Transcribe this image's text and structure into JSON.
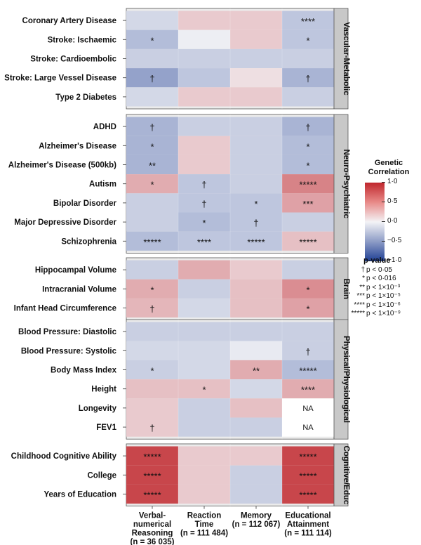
{
  "chart_data": {
    "type": "heatmap",
    "columns": [
      {
        "name": "Verbal-numerical Reasoning",
        "lines": [
          "Verbal-",
          "numerical",
          "Reasoning"
        ],
        "n": "(n = 36 035)"
      },
      {
        "name": "Reaction Time",
        "lines": [
          "Reaction",
          "Time"
        ],
        "n": "(n = 111 484)"
      },
      {
        "name": "Memory",
        "lines": [
          "Memory"
        ],
        "n": "(n = 112 067)"
      },
      {
        "name": "Educational Attainment",
        "lines": [
          "Educational",
          "Attainment"
        ],
        "n": "(n = 111 114)"
      }
    ],
    "panels": [
      {
        "label": "Vascular-Metabolic",
        "rows": [
          {
            "trait": "Coronary Artery Disease",
            "values": [
              -0.15,
              0.2,
              0.2,
              -0.25
            ],
            "marks": [
              "",
              "",
              "",
              "****"
            ]
          },
          {
            "trait": "Stroke: Ischaemic",
            "values": [
              -0.3,
              -0.03,
              0.2,
              -0.25
            ],
            "marks": [
              "*",
              "",
              "",
              "*"
            ]
          },
          {
            "trait": "Stroke: Cardioembolic",
            "values": [
              -0.2,
              -0.2,
              -0.2,
              -0.2
            ],
            "marks": [
              "",
              "",
              "",
              ""
            ]
          },
          {
            "trait": "Stroke: Large Vessel Disease",
            "values": [
              -0.45,
              -0.25,
              0.1,
              -0.35
            ],
            "marks": [
              "†",
              "",
              "",
              "†"
            ]
          },
          {
            "trait": "Type 2 Diabetes",
            "values": [
              -0.15,
              0.2,
              0.2,
              -0.2
            ],
            "marks": [
              "",
              "",
              "",
              ""
            ]
          }
        ]
      },
      {
        "label": "Neuro-Psychiatric",
        "rows": [
          {
            "trait": "ADHD",
            "values": [
              -0.35,
              -0.2,
              -0.2,
              -0.35
            ],
            "marks": [
              "†",
              "",
              "",
              "†"
            ]
          },
          {
            "trait": "Alzheimer's Disease",
            "values": [
              -0.35,
              0.2,
              -0.2,
              -0.3
            ],
            "marks": [
              "*",
              "",
              "",
              "*"
            ]
          },
          {
            "trait": "Alzheimer's Disease (500kb)",
            "values": [
              -0.35,
              0.2,
              -0.2,
              -0.3
            ],
            "marks": [
              "**",
              "",
              "",
              "*"
            ]
          },
          {
            "trait": "Autism",
            "values": [
              0.35,
              -0.25,
              -0.2,
              0.55
            ],
            "marks": [
              "*",
              "†",
              "",
              "*****"
            ]
          },
          {
            "trait": "Bipolar Disorder",
            "values": [
              -0.2,
              -0.25,
              -0.25,
              0.4
            ],
            "marks": [
              "",
              "†",
              "*",
              "***"
            ]
          },
          {
            "trait": "Major Depressive Disorder",
            "values": [
              -0.2,
              -0.3,
              -0.25,
              -0.2
            ],
            "marks": [
              "",
              "*",
              "†",
              ""
            ]
          },
          {
            "trait": "Schizophrenia",
            "values": [
              -0.3,
              -0.25,
              -0.25,
              0.25
            ],
            "marks": [
              "*****",
              "****",
              "*****",
              "*****"
            ]
          }
        ]
      },
      {
        "label": "Brain",
        "rows": [
          {
            "trait": "Hippocampal Volume",
            "values": [
              -0.2,
              0.35,
              0.2,
              -0.2
            ],
            "marks": [
              "",
              "",
              "",
              ""
            ]
          },
          {
            "trait": "Intracranial Volume",
            "values": [
              0.35,
              -0.2,
              0.25,
              0.5
            ],
            "marks": [
              "*",
              "",
              "",
              "*"
            ]
          },
          {
            "trait": "Infant Head Circumference",
            "values": [
              0.3,
              -0.15,
              0.25,
              0.4
            ],
            "marks": [
              "†",
              "",
              "",
              "*"
            ]
          }
        ]
      },
      {
        "label": "Physical/Physiological",
        "rows": [
          {
            "trait": "Blood Pressure: Diastolic",
            "values": [
              -0.2,
              -0.2,
              -0.2,
              -0.2
            ],
            "marks": [
              "",
              "",
              "",
              ""
            ]
          },
          {
            "trait": "Blood Pressure: Systolic",
            "values": [
              -0.15,
              -0.15,
              -0.05,
              -0.2
            ],
            "marks": [
              "",
              "",
              "",
              "†"
            ]
          },
          {
            "trait": "Body Mass Index",
            "values": [
              -0.2,
              -0.15,
              0.35,
              -0.3
            ],
            "marks": [
              "*",
              "",
              "**",
              "*****"
            ]
          },
          {
            "trait": "Height",
            "values": [
              0.25,
              0.25,
              -0.15,
              0.35
            ],
            "marks": [
              "",
              "*",
              "",
              "****"
            ]
          },
          {
            "trait": "Longevity",
            "values": [
              0.2,
              -0.2,
              0.25,
              null
            ],
            "marks": [
              "",
              "",
              "",
              "NA"
            ]
          },
          {
            "trait": "FEV1",
            "values": [
              0.2,
              -0.2,
              -0.2,
              null
            ],
            "marks": [
              "†",
              "",
              "",
              "NA"
            ]
          }
        ]
      },
      {
        "label": "Cognitive/Educ",
        "rows": [
          {
            "trait": "Childhood Cognitive Ability",
            "values": [
              0.85,
              0.2,
              0.2,
              0.85
            ],
            "marks": [
              "*****",
              "",
              "",
              "*****"
            ]
          },
          {
            "trait": "College",
            "values": [
              0.85,
              0.2,
              -0.2,
              0.85
            ],
            "marks": [
              "*****",
              "",
              "",
              "*****"
            ]
          },
          {
            "trait": "Years of Education",
            "values": [
              0.85,
              0.2,
              -0.2,
              0.85
            ],
            "marks": [
              "*****",
              "",
              "",
              "*****"
            ]
          }
        ]
      }
    ],
    "color_scale": {
      "min": -1.0,
      "max": 1.0,
      "low": "#1f3f94",
      "mid": "#f3f3f6",
      "high": "#c0272d",
      "na": "#ffffff"
    },
    "legend": {
      "title_lines": [
        "Genetic",
        "Correlation"
      ],
      "ticks": [
        "1·0",
        "0·5",
        "0·0",
        "−0·5",
        "−1·0"
      ]
    },
    "pvalue_legend": {
      "title": "p-value",
      "entries": [
        {
          "sym": "†",
          "text": "p < 0·05"
        },
        {
          "sym": "*",
          "text": "p < 0·016"
        },
        {
          "sym": "**",
          "text": "p < 1×10⁻³"
        },
        {
          "sym": "***",
          "text": "p < 1×10⁻⁵"
        },
        {
          "sym": "****",
          "text": "p < 1×10⁻⁶"
        },
        {
          "sym": "*****",
          "text": "p < 1×10⁻⁹"
        }
      ]
    }
  }
}
